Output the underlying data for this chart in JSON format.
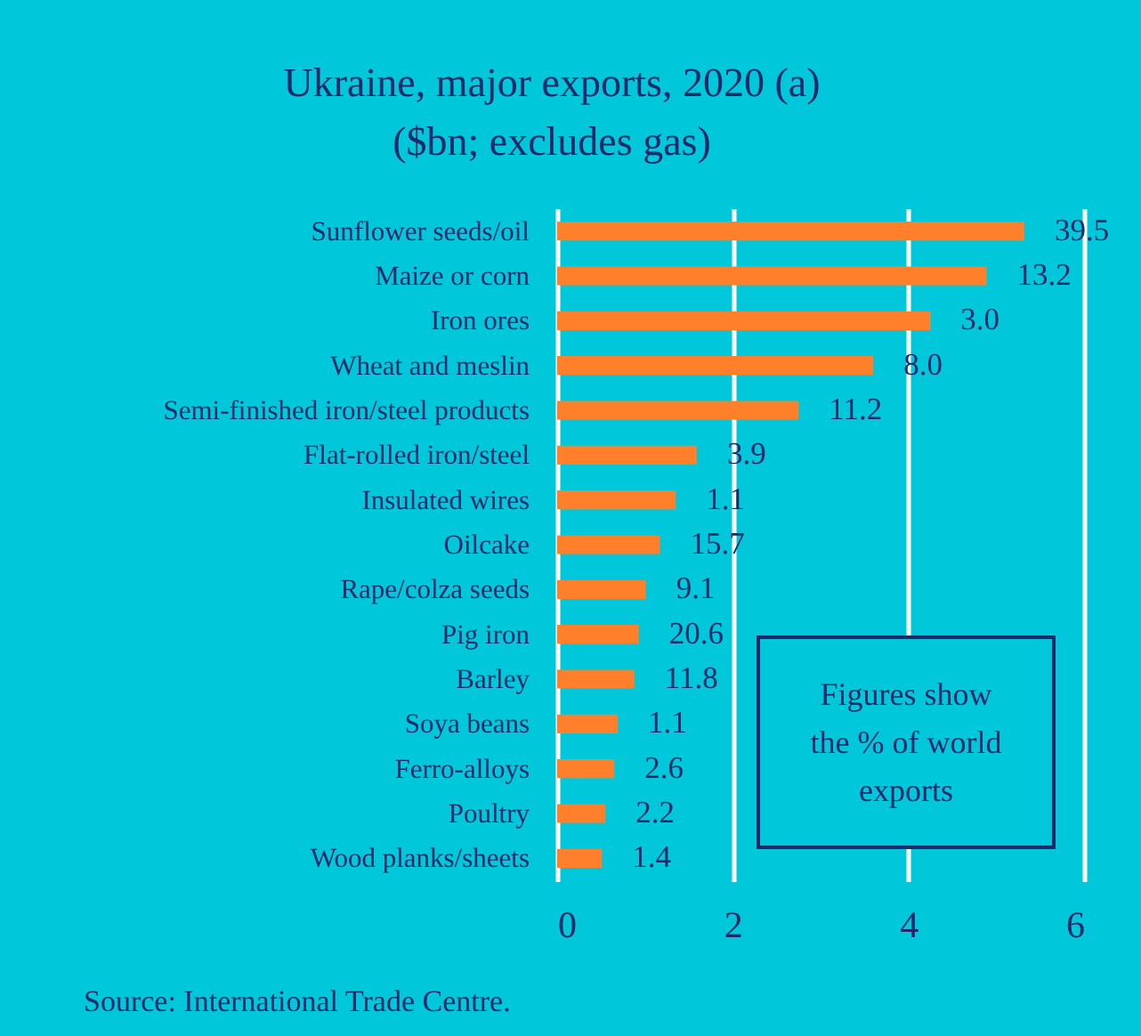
{
  "chart_data": {
    "type": "bar",
    "orientation": "horizontal",
    "title": "Ukraine, major exports, 2020 (a)",
    "subtitle": "($bn; excludes gas)",
    "categories": [
      "Sunflower seeds/oil",
      "Maize or corn",
      "Iron ores",
      "Wheat and meslin",
      "Semi-finished iron/steel products",
      "Flat-rolled iron/steel",
      "Insulated wires",
      "Oilcake",
      "Rape/colza seeds",
      "Pig iron",
      "Barley",
      "Soya beans",
      "Ferro-alloys",
      "Poultry",
      "Wood planks/sheets"
    ],
    "values": [
      5.32,
      4.89,
      4.25,
      3.6,
      2.75,
      1.59,
      1.35,
      1.17,
      1.01,
      0.93,
      0.88,
      0.69,
      0.65,
      0.55,
      0.51
    ],
    "color": "#ff7f2a",
    "xlim": [
      0,
      6
    ],
    "xticks": [
      0,
      2,
      4,
      6
    ],
    "grid": "x",
    "annotations": [
      {
        "text": "39.5",
        "x": 5.32,
        "y": "Sunflower seeds/oil"
      },
      {
        "text": "13.2",
        "x": 4.89,
        "y": "Maize or corn"
      },
      {
        "text": "3.0",
        "x": 4.25,
        "y": "Iron ores"
      },
      {
        "text": "8.0",
        "x": 3.6,
        "y": "Wheat and meslin"
      },
      {
        "text": "11.2",
        "x": 2.75,
        "y": "Semi-finished iron/steel products"
      },
      {
        "text": "3.9",
        "x": 1.59,
        "y": "Flat-rolled iron/steel"
      },
      {
        "text": "1.1",
        "x": 1.35,
        "y": "Insulated wires"
      },
      {
        "text": "15.7",
        "x": 1.17,
        "y": "Oilcake"
      },
      {
        "text": "9.1",
        "x": 1.01,
        "y": "Rape/colza seeds"
      },
      {
        "text": "20.6",
        "x": 0.93,
        "y": "Pig iron"
      },
      {
        "text": "11.8",
        "x": 0.88,
        "y": "Barley"
      },
      {
        "text": "1.1",
        "x": 0.69,
        "y": "Soya beans"
      },
      {
        "text": "2.6",
        "x": 0.65,
        "y": "Ferro-alloys"
      },
      {
        "text": "2.2",
        "x": 0.55,
        "y": "Poultry"
      },
      {
        "text": "1.4",
        "x": 0.51,
        "y": "Wood planks/sheets"
      },
      "Figures show the % of world exports",
      "Source: International Trade Centre."
    ]
  }
}
